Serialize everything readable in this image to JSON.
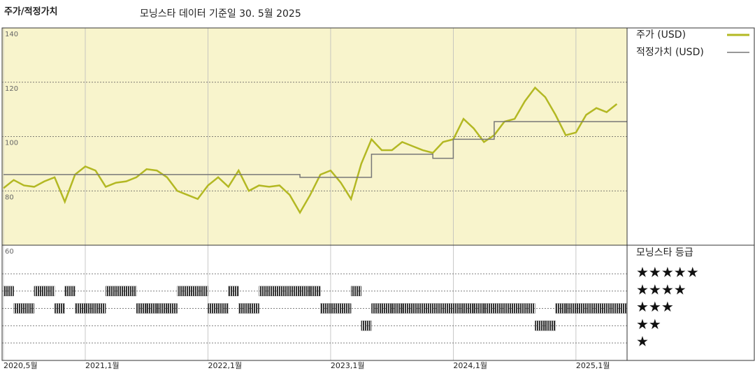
{
  "chart_data": {
    "type": "line",
    "title": "주가/적정가치",
    "subtitle": "모닝스타 데이터 기준일 30. 5월 2025",
    "x": [
      "2020-05",
      "2020-06",
      "2020-07",
      "2020-08",
      "2020-09",
      "2020-10",
      "2020-11",
      "2020-12",
      "2021-01",
      "2021-02",
      "2021-03",
      "2021-04",
      "2021-05",
      "2021-06",
      "2021-07",
      "2021-08",
      "2021-09",
      "2021-10",
      "2021-11",
      "2021-12",
      "2022-01",
      "2022-02",
      "2022-03",
      "2022-04",
      "2022-05",
      "2022-06",
      "2022-07",
      "2022-08",
      "2022-09",
      "2022-10",
      "2022-11",
      "2022-12",
      "2023-01",
      "2023-02",
      "2023-03",
      "2023-04",
      "2023-05",
      "2023-06",
      "2023-07",
      "2023-08",
      "2023-09",
      "2023-10",
      "2023-11",
      "2023-12",
      "2024-01",
      "2024-02",
      "2024-03",
      "2024-04",
      "2024-05",
      "2024-06",
      "2024-07",
      "2024-08",
      "2024-09",
      "2024-10",
      "2024-11",
      "2024-12",
      "2025-01",
      "2025-02",
      "2025-03",
      "2025-04",
      "2025-05"
    ],
    "series": [
      {
        "name": "주가 (USD)",
        "color": "#b3b823",
        "values": [
          81,
          84,
          82,
          81.5,
          83.5,
          85,
          76,
          86,
          89,
          87.5,
          81.5,
          83,
          83.5,
          85,
          88,
          87.5,
          85,
          80,
          78.5,
          77,
          82,
          85,
          81.5,
          87.5,
          80,
          82,
          81.5,
          82,
          78.5,
          72,
          78.5,
          86,
          87.5,
          83,
          77,
          90,
          99,
          95,
          95,
          98,
          96.5,
          95,
          94,
          98,
          99,
          106.5,
          103,
          98,
          100.5,
          105.5,
          106.5,
          113,
          118,
          114.5,
          108,
          100.5,
          101.5,
          108,
          110.5,
          109,
          112
        ]
      },
      {
        "name": "적정가치 (USD)",
        "color": "#777777",
        "values": [
          86,
          86,
          86,
          86,
          86,
          86,
          86,
          86,
          86,
          86,
          86,
          86,
          86,
          86,
          86,
          86,
          86,
          86,
          86,
          86,
          86,
          86,
          86,
          86,
          86,
          86,
          86,
          86,
          86,
          85,
          85,
          85,
          85,
          85,
          85,
          85,
          93.5,
          93.5,
          93.5,
          93.5,
          93.5,
          93.5,
          92,
          92,
          99,
          99,
          99,
          99,
          105.5,
          105.5,
          105.5,
          105.5,
          105.5,
          105.5,
          105.5,
          105.5,
          105.5,
          105.5,
          105.5,
          105.5,
          105.5
        ]
      }
    ],
    "xlim": [
      "2020-05",
      "2025-06"
    ],
    "xticks": [
      {
        "value": "2020-05",
        "label": "2020,5월"
      },
      {
        "value": "2021-01",
        "label": "2021,1월"
      },
      {
        "value": "2022-01",
        "label": "2022,1월"
      },
      {
        "value": "2023-01",
        "label": "2023,1월"
      },
      {
        "value": "2024-01",
        "label": "2024,1월"
      },
      {
        "value": "2025-01",
        "label": "2025,1월"
      }
    ],
    "ylim": [
      60,
      140
    ],
    "yticks": [
      60,
      80,
      100,
      120,
      140
    ],
    "grid": true,
    "rating_title": "모닝스타 등급",
    "rating_levels": [
      5,
      4,
      3,
      2,
      1
    ],
    "rating_labels": [
      "★★★★★",
      "★★★★",
      "★★★",
      "★★",
      "★"
    ],
    "rating_color": "#333333",
    "ratings": [
      4,
      3,
      3,
      4,
      4,
      3,
      4,
      3,
      3,
      3,
      4,
      4,
      4,
      3,
      3,
      3,
      3,
      4,
      4,
      4,
      3,
      3,
      4,
      3,
      3,
      4,
      4,
      4,
      4,
      4,
      4,
      3,
      3,
      3,
      4,
      2,
      3,
      3,
      3,
      3,
      3,
      3,
      3,
      3,
      3,
      3,
      3,
      3,
      3,
      3,
      3,
      3,
      2,
      2,
      3,
      3,
      3,
      3,
      3,
      3,
      3
    ]
  }
}
